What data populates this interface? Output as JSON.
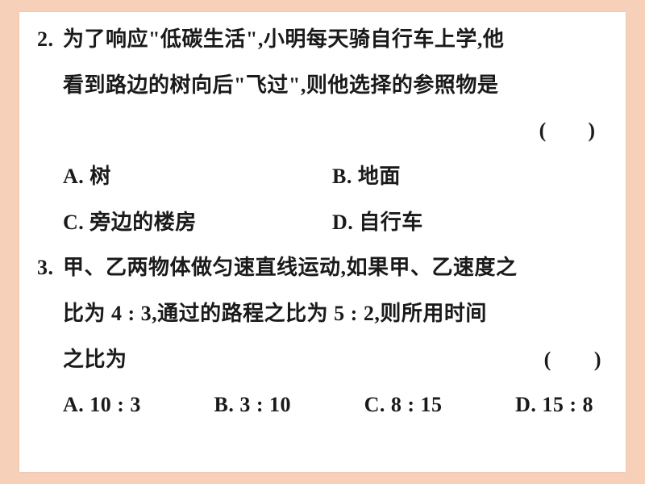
{
  "page": {
    "background_color": "#f7d0b9",
    "paper_color": "#ffffff",
    "text_color": "#1a1a1a",
    "font_family": "SimSun",
    "base_fontsize_pt": 20,
    "line_height": 2.18
  },
  "q2": {
    "number": "2.",
    "line1": "为了响应\"低碳生活\",小明每天骑自行车上学,他",
    "line2": "看到路边的树向后\"飞过\",则他选择的参照物是",
    "paren": "(　　)",
    "optA": "A. 树",
    "optB": "B. 地面",
    "optC": "C. 旁边的楼房",
    "optD": "D. 自行车"
  },
  "q3": {
    "number": "3.",
    "line1": "甲、乙两物体做匀速直线运动,如果甲、乙速度之",
    "line2": "比为 4 : 3,通过的路程之比为 5 : 2,则所用时间",
    "line3": "之比为",
    "paren": "(　　)",
    "optA": "A. 10 : 3",
    "optB": "B. 3 : 10",
    "optC": "C. 8 : 15",
    "optD": "D. 15 : 8"
  }
}
